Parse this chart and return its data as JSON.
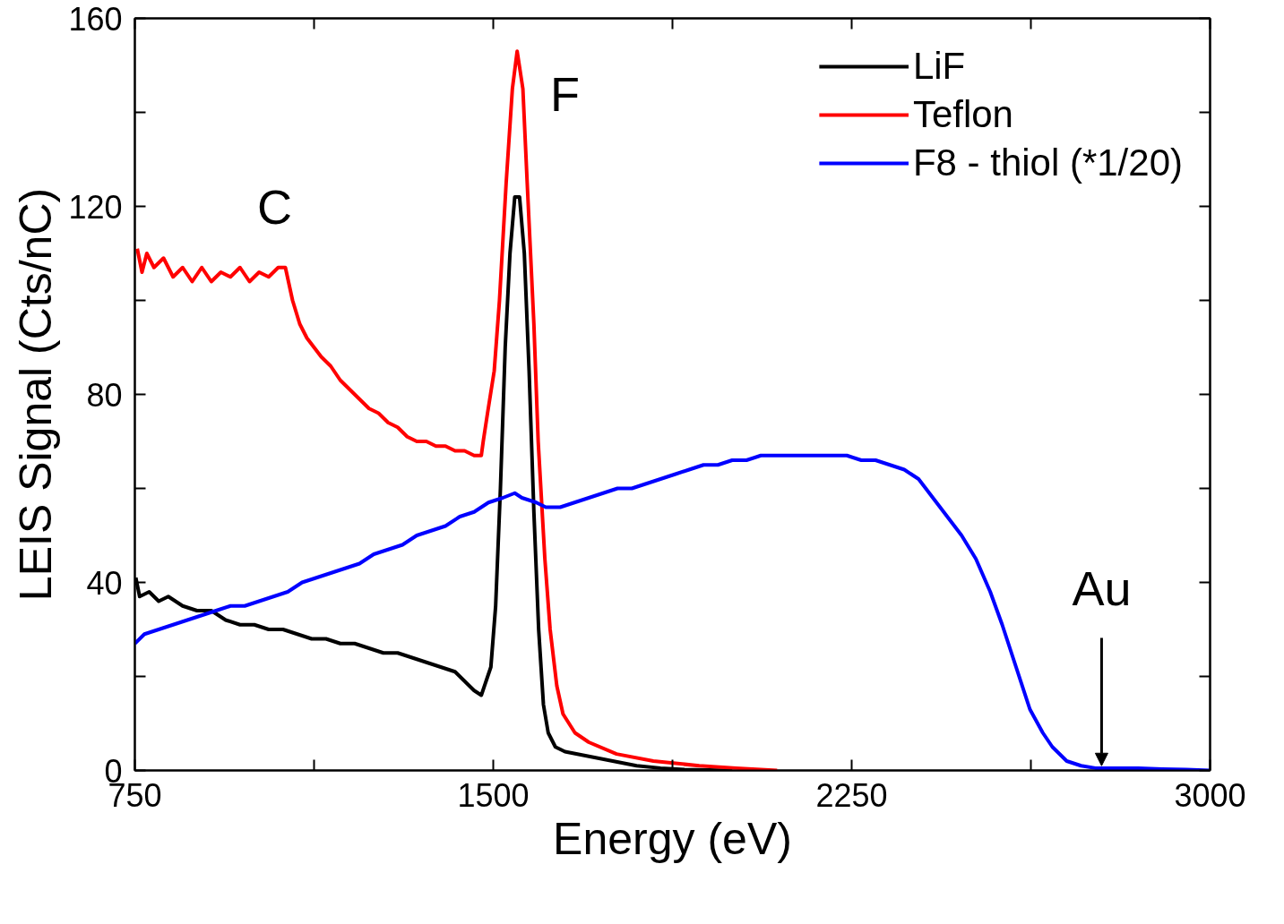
{
  "chart_data": {
    "type": "line",
    "xlabel": "Energy (eV)",
    "ylabel": "LEIS Signal (Cts/nC)",
    "xlim": [
      750,
      3000
    ],
    "ylim": [
      0,
      160
    ],
    "xticks": [
      750,
      {
        "value": 1125,
        "label": null
      },
      1500,
      {
        "value": 1875,
        "label": null
      },
      2250,
      {
        "value": 2625,
        "label": null
      },
      3000
    ],
    "yticks": [
      0,
      {
        "value": 20,
        "label": null
      },
      40,
      {
        "value": 60,
        "label": null
      },
      80,
      {
        "value": 100,
        "label": null
      },
      120,
      {
        "value": 140,
        "label": null
      },
      160
    ],
    "grid": false,
    "legend": "top right",
    "marker": "none",
    "line_style": "solid",
    "annotations": [
      "C",
      "F",
      {
        "text": "Au",
        "x": 2773,
        "y": 1
      }
    ],
    "series": [
      {
        "name": "LiF",
        "color": "#000000",
        "x": [
          752,
          760,
          780,
          800,
          820,
          850,
          880,
          910,
          940,
          970,
          1000,
          1030,
          1060,
          1090,
          1120,
          1150,
          1180,
          1210,
          1240,
          1270,
          1300,
          1330,
          1360,
          1390,
          1420,
          1440,
          1460,
          1475,
          1485,
          1495,
          1505,
          1515,
          1525,
          1535,
          1545,
          1555,
          1565,
          1575,
          1585,
          1595,
          1605,
          1615,
          1630,
          1650,
          1700,
          1750,
          1800,
          1850,
          1900,
          2000
        ],
        "values": [
          41,
          37,
          38,
          36,
          37,
          35,
          34,
          34,
          32,
          31,
          31,
          30,
          30,
          29,
          28,
          28,
          27,
          27,
          26,
          25,
          25,
          24,
          23,
          22,
          21,
          19,
          17,
          16,
          19,
          22,
          35,
          60,
          90,
          110,
          122,
          122,
          110,
          85,
          55,
          30,
          14,
          8,
          5,
          4,
          3,
          2,
          1,
          0.5,
          0.2,
          0
        ]
      },
      {
        "name": "Teflon",
        "color": "#ff0000",
        "x": [
          755,
          765,
          775,
          790,
          810,
          830,
          850,
          870,
          890,
          910,
          930,
          950,
          970,
          990,
          1010,
          1030,
          1050,
          1065,
          1080,
          1095,
          1110,
          1125,
          1140,
          1160,
          1180,
          1200,
          1220,
          1240,
          1260,
          1280,
          1300,
          1320,
          1340,
          1360,
          1380,
          1400,
          1420,
          1440,
          1460,
          1475,
          1479,
          1488,
          1502,
          1513,
          1527,
          1540,
          1550,
          1562,
          1571,
          1585,
          1594,
          1608,
          1619,
          1633,
          1646,
          1671,
          1700,
          1758,
          1835,
          1931,
          2008,
          2094
        ],
        "values": [
          111,
          106,
          110,
          107,
          109,
          105,
          107,
          104,
          107,
          104,
          106,
          105,
          107,
          104,
          106,
          105,
          107,
          107,
          100,
          95,
          92,
          90,
          88,
          86,
          83,
          81,
          79,
          77,
          76,
          74,
          73,
          71,
          70,
          70,
          69,
          69,
          68,
          68,
          67,
          67,
          70,
          76,
          85,
          100,
          125,
          145,
          153,
          145,
          125,
          95,
          70,
          45,
          30,
          18,
          12,
          8,
          6,
          3.5,
          2,
          1,
          0.5,
          0
        ]
      },
      {
        "name": "F8 - thiol (*1/20)",
        "color": "#0000ff",
        "x": [
          750,
          770,
          800,
          830,
          860,
          890,
          920,
          950,
          980,
          1010,
          1040,
          1070,
          1100,
          1130,
          1160,
          1190,
          1220,
          1250,
          1280,
          1310,
          1340,
          1370,
          1400,
          1430,
          1460,
          1490,
          1520,
          1545,
          1560,
          1590,
          1610,
          1640,
          1670,
          1700,
          1730,
          1760,
          1790,
          1820,
          1850,
          1880,
          1910,
          1940,
          1970,
          2000,
          2030,
          2060,
          2090,
          2120,
          2150,
          2180,
          2210,
          2240,
          2270,
          2300,
          2330,
          2360,
          2390,
          2420,
          2450,
          2480,
          2510,
          2540,
          2565,
          2594,
          2623,
          2650,
          2670,
          2700,
          2730,
          2760,
          2800,
          2850,
          2900,
          2950,
          3000
        ],
        "values": [
          27,
          29,
          30,
          31,
          32,
          33,
          34,
          35,
          35,
          36,
          37,
          38,
          40,
          41,
          42,
          43,
          44,
          46,
          47,
          48,
          50,
          51,
          52,
          54,
          55,
          57,
          58,
          59,
          58,
          57,
          56,
          56,
          57,
          58,
          59,
          60,
          60,
          61,
          62,
          63,
          64,
          65,
          65,
          66,
          66,
          67,
          67,
          67,
          67,
          67,
          67,
          67,
          66,
          66,
          65,
          64,
          62,
          58,
          54,
          50,
          45,
          38,
          31,
          22,
          13,
          8,
          5,
          2,
          1,
          0.5,
          0.5,
          0.5,
          0.3,
          0.2,
          0
        ]
      }
    ]
  }
}
